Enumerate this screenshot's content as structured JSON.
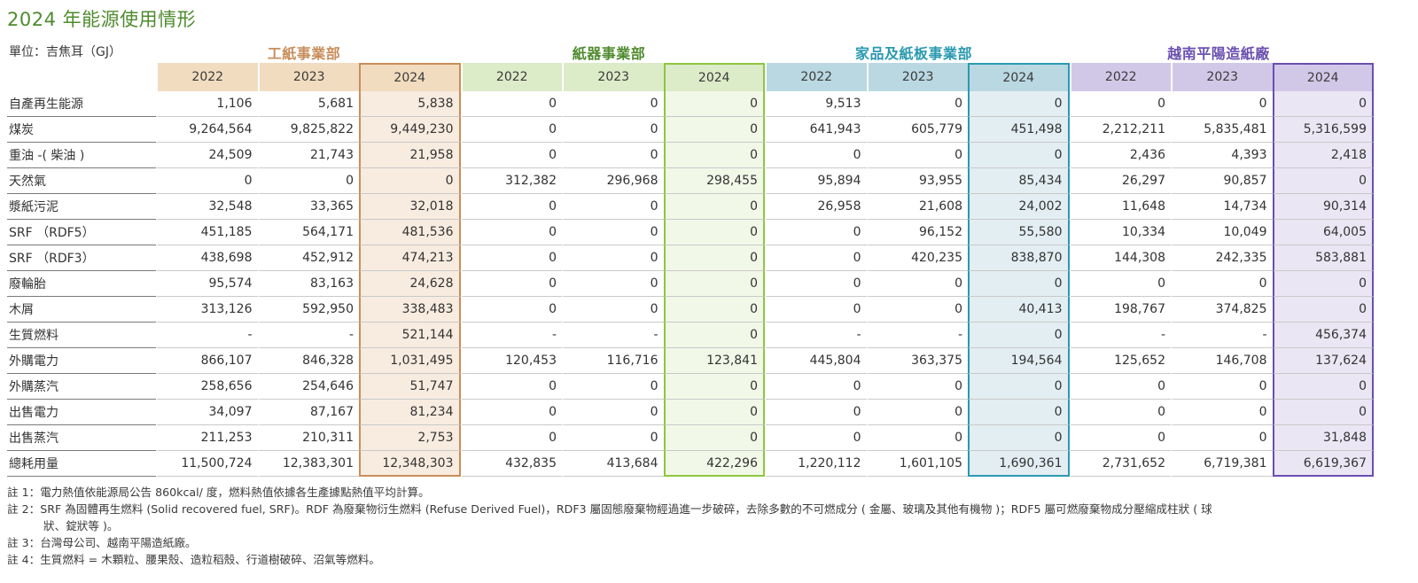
{
  "title": "2024 年能源使用情形",
  "unit_label": "單位：吉焦耳（GJ）",
  "colors": {
    "title": "#4f8b2e",
    "groups": [
      {
        "header_text": "#c98d5a",
        "year_bg": "#f1dcbf",
        "current_bg": "#f8ece0",
        "current_border": "#c98d5a"
      },
      {
        "header_text": "#4f8b2e",
        "year_bg": "#dcebc8",
        "current_bg": "#f2f8e8",
        "current_border": "#8dc63f"
      },
      {
        "header_text": "#2a9ab0",
        "year_bg": "#bad8e2",
        "current_bg": "#e2eef2",
        "current_border": "#2a9ab0"
      },
      {
        "header_text": "#6a4fb0",
        "year_bg": "#d1c8e8",
        "current_bg": "#ebe6f4",
        "current_border": "#6a4fb0"
      }
    ]
  },
  "departments": [
    "工紙事業部",
    "紙器事業部",
    "家品及紙板事業部",
    "越南平陽造紙廠"
  ],
  "years": [
    "2022",
    "2023",
    "2024"
  ],
  "rows": [
    {
      "label": "自產再生能源",
      "values": [
        "1,106",
        "5,681",
        "5,838",
        "0",
        "0",
        "0",
        "9,513",
        "0",
        "0",
        "0",
        "0",
        "0"
      ]
    },
    {
      "label": "煤炭",
      "values": [
        "9,264,564",
        "9,825,822",
        "9,449,230",
        "0",
        "0",
        "0",
        "641,943",
        "605,779",
        "451,498",
        "2,212,211",
        "5,835,481",
        "5,316,599"
      ]
    },
    {
      "label": "重油 -( 柴油 )",
      "values": [
        "24,509",
        "21,743",
        "21,958",
        "0",
        "0",
        "0",
        "0",
        "0",
        "0",
        "2,436",
        "4,393",
        "2,418"
      ]
    },
    {
      "label": "天然氣",
      "values": [
        "0",
        "0",
        "0",
        "312,382",
        "296,968",
        "298,455",
        "95,894",
        "93,955",
        "85,434",
        "26,297",
        "90,857",
        "0"
      ]
    },
    {
      "label": "漿紙污泥",
      "values": [
        "32,548",
        "33,365",
        "32,018",
        "0",
        "0",
        "0",
        "26,958",
        "21,608",
        "24,002",
        "11,648",
        "14,734",
        "90,314"
      ]
    },
    {
      "label": "SRF （RDF5）",
      "values": [
        "451,185",
        "564,171",
        "481,536",
        "0",
        "0",
        "0",
        "0",
        "96,152",
        "55,580",
        "10,334",
        "10,049",
        "64,005"
      ]
    },
    {
      "label": "SRF （RDF3）",
      "values": [
        "438,698",
        "452,912",
        "474,213",
        "0",
        "0",
        "0",
        "0",
        "420,235",
        "838,870",
        "144,308",
        "242,335",
        "583,881"
      ]
    },
    {
      "label": "廢輪胎",
      "values": [
        "95,574",
        "83,163",
        "24,628",
        "0",
        "0",
        "0",
        "0",
        "0",
        "0",
        "0",
        "0",
        "0"
      ]
    },
    {
      "label": "木屑",
      "values": [
        "313,126",
        "592,950",
        "338,483",
        "0",
        "0",
        "0",
        "0",
        "0",
        "40,413",
        "198,767",
        "374,825",
        "0"
      ]
    },
    {
      "label": "生質燃料",
      "values": [
        "-",
        "-",
        "521,144",
        "-",
        "-",
        "0",
        "-",
        "-",
        "0",
        "-",
        "-",
        "456,374"
      ]
    },
    {
      "label": "外購電力",
      "values": [
        "866,107",
        "846,328",
        "1,031,495",
        "120,453",
        "116,716",
        "123,841",
        "445,804",
        "363,375",
        "194,564",
        "125,652",
        "146,708",
        "137,624"
      ]
    },
    {
      "label": "外購蒸汽",
      "values": [
        "258,656",
        "254,646",
        "51,747",
        "0",
        "0",
        "0",
        "0",
        "0",
        "0",
        "0",
        "0",
        "0"
      ]
    },
    {
      "label": "出售電力",
      "values": [
        "34,097",
        "87,167",
        "81,234",
        "0",
        "0",
        "0",
        "0",
        "0",
        "0",
        "0",
        "0",
        "0"
      ]
    },
    {
      "label": "出售蒸汽",
      "values": [
        "211,253",
        "210,311",
        "2,753",
        "0",
        "0",
        "0",
        "0",
        "0",
        "0",
        "0",
        "0",
        "31,848"
      ]
    },
    {
      "label": "總耗用量",
      "values": [
        "11,500,724",
        "12,383,301",
        "12,348,303",
        "432,835",
        "413,684",
        "422,296",
        "1,220,112",
        "1,601,105",
        "1,690,361",
        "2,731,652",
        "6,719,381",
        "6,619,367"
      ]
    }
  ],
  "notes": [
    "註 1：電力熱值依能源局公告 860kcal/ 度，燃料熱值依據各生產據點熱值平均計算。",
    "註 2：SRF 為固體再生燃料 (Solid recovered fuel, SRF)。RDF 為廢棄物衍生燃料 (Refuse Derived Fuel)，RDF3 屬固態廢棄物經過進一步破碎，去除多數的不可燃成分 ( 金屬、玻璃及其他有機物 )；RDF5 屬可燃廢棄物成分壓縮成柱狀 ( 球",
    "狀、錠狀等 )。",
    "註 3：台灣母公司、越南平陽造紙廠。",
    "註 4：生質燃料 = 木顆粒、腰果殼、造粒稻殼、行道樹破碎、沼氣等燃料。"
  ]
}
